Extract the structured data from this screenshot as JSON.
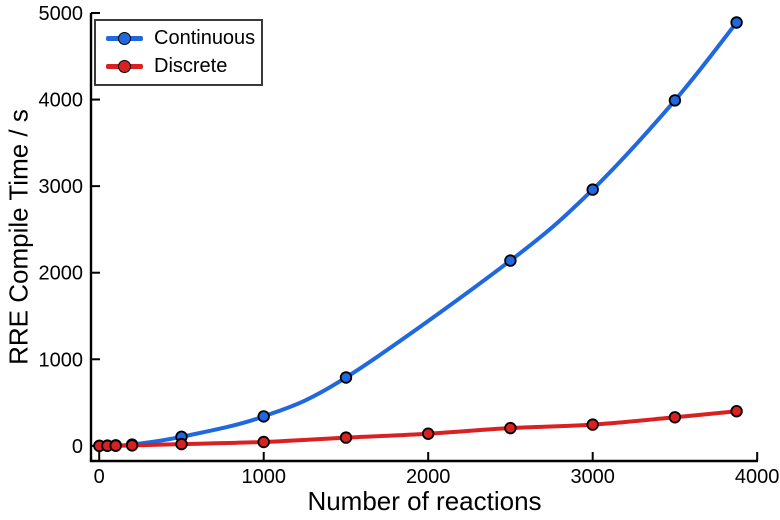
{
  "figure": {
    "background": "#ffffff",
    "axis_color": "#000000",
    "text_color": "#000000"
  },
  "chart_data": {
    "type": "line",
    "title": "",
    "xlabel": "Number of reactions",
    "ylabel": "RRE Compile Time / s",
    "xlim": [
      -50,
      4005
    ],
    "ylim": [
      -175,
      5000
    ],
    "xticks": [
      0,
      1000,
      2000,
      3000,
      4000
    ],
    "yticks": [
      0,
      1000,
      2000,
      3000,
      4000,
      5000
    ],
    "grid": false,
    "legend_position": "top-left",
    "series": [
      {
        "name": "Continuous",
        "color": "#1f68e0",
        "marker": "circle",
        "x": [
          1,
          50,
          100,
          200,
          500,
          1000,
          1500,
          2500,
          3000,
          3500,
          3875
        ],
        "y": [
          1,
          3,
          6,
          15,
          105,
          340,
          790,
          2140,
          2960,
          3990,
          4890
        ]
      },
      {
        "name": "Discrete",
        "color": "#d92121",
        "marker": "circle",
        "x": [
          1,
          50,
          100,
          200,
          500,
          1000,
          1500,
          2000,
          2500,
          3000,
          3500,
          3875
        ],
        "y": [
          0,
          1,
          2,
          5,
          20,
          45,
          95,
          140,
          205,
          245,
          330,
          400
        ]
      }
    ]
  }
}
